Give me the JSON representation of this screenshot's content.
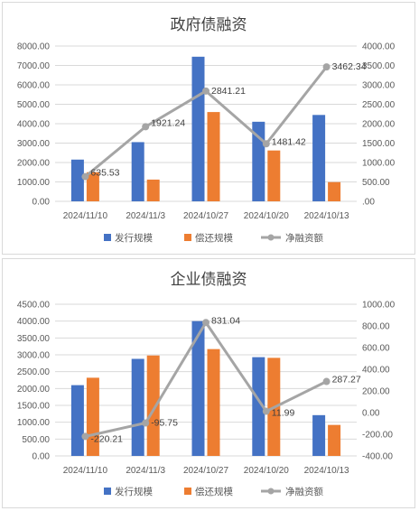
{
  "colors": {
    "issue": "#4472C4",
    "repay": "#ED7D31",
    "net": "#A5A5A5",
    "grid": "#d9d9d9",
    "text": "#595959"
  },
  "legend": {
    "issue": "发行规模",
    "repay": "偿还规模",
    "net": "净融资额"
  },
  "chart_data": [
    {
      "type": "bar",
      "title": "政府债融资",
      "categories": [
        "2024/11/10",
        "2024/11/3",
        "2024/10/27",
        "2024/10/20",
        "2024/10/13"
      ],
      "series": [
        {
          "name": "发行规模",
          "type": "bar",
          "axis": "left",
          "values": [
            2150,
            3050,
            7450,
            4100,
            4450
          ]
        },
        {
          "name": "偿还规模",
          "type": "bar",
          "axis": "left",
          "values": [
            1500,
            1120,
            4600,
            2620,
            990
          ]
        },
        {
          "name": "净融资额",
          "type": "line",
          "axis": "right",
          "values": [
            635.53,
            1921.24,
            2841.21,
            1481.42,
            3462.34
          ]
        }
      ],
      "left_axis": {
        "min": 0,
        "max": 8000,
        "step": 1000,
        "ticks": [
          "0.00",
          "1000.00",
          "2000.00",
          "3000.00",
          "4000.00",
          "5000.00",
          "6000.00",
          "7000.00",
          "8000.00"
        ]
      },
      "right_axis": {
        "min": 0,
        "max": 4000,
        "step": 500,
        "ticks": [
          ".00",
          "500.00",
          "1000.00",
          "1500.00",
          "2000.00",
          "2500.00",
          "3000.00",
          "3500.00",
          "4000.00"
        ]
      },
      "data_labels": [
        "635.53",
        "1921.24",
        "2841.21",
        "1481.42",
        "3462.34"
      ],
      "grid": true,
      "legend_position": "bottom"
    },
    {
      "type": "bar",
      "title": "企业债融资",
      "categories": [
        "2024/11/10",
        "2024/11/3",
        "2024/10/27",
        "2024/10/20",
        "2024/10/13"
      ],
      "series": [
        {
          "name": "发行规模",
          "type": "bar",
          "axis": "left",
          "values": [
            2100,
            2880,
            4000,
            2930,
            1210
          ]
        },
        {
          "name": "偿还规模",
          "type": "bar",
          "axis": "left",
          "values": [
            2320,
            2980,
            3170,
            2910,
            920
          ]
        },
        {
          "name": "净融资额",
          "type": "line",
          "axis": "right",
          "values": [
            -220.21,
            -95.75,
            831.04,
            11.99,
            287.27
          ]
        }
      ],
      "left_axis": {
        "min": 0,
        "max": 4500,
        "step": 500,
        "ticks": [
          "0.00",
          "500.00",
          "1000.00",
          "1500.00",
          "2000.00",
          "2500.00",
          "3000.00",
          "3500.00",
          "4000.00",
          "4500.00"
        ]
      },
      "right_axis": {
        "min": -400,
        "max": 1000,
        "step": 200,
        "ticks": [
          "-400.00",
          "-200.00",
          "0.00",
          "200.00",
          "400.00",
          "600.00",
          "800.00",
          "1000.00"
        ]
      },
      "data_labels": [
        "-220.21",
        "-95.75",
        "831.04",
        "11.99",
        "287.27"
      ],
      "grid": true,
      "legend_position": "bottom"
    }
  ]
}
